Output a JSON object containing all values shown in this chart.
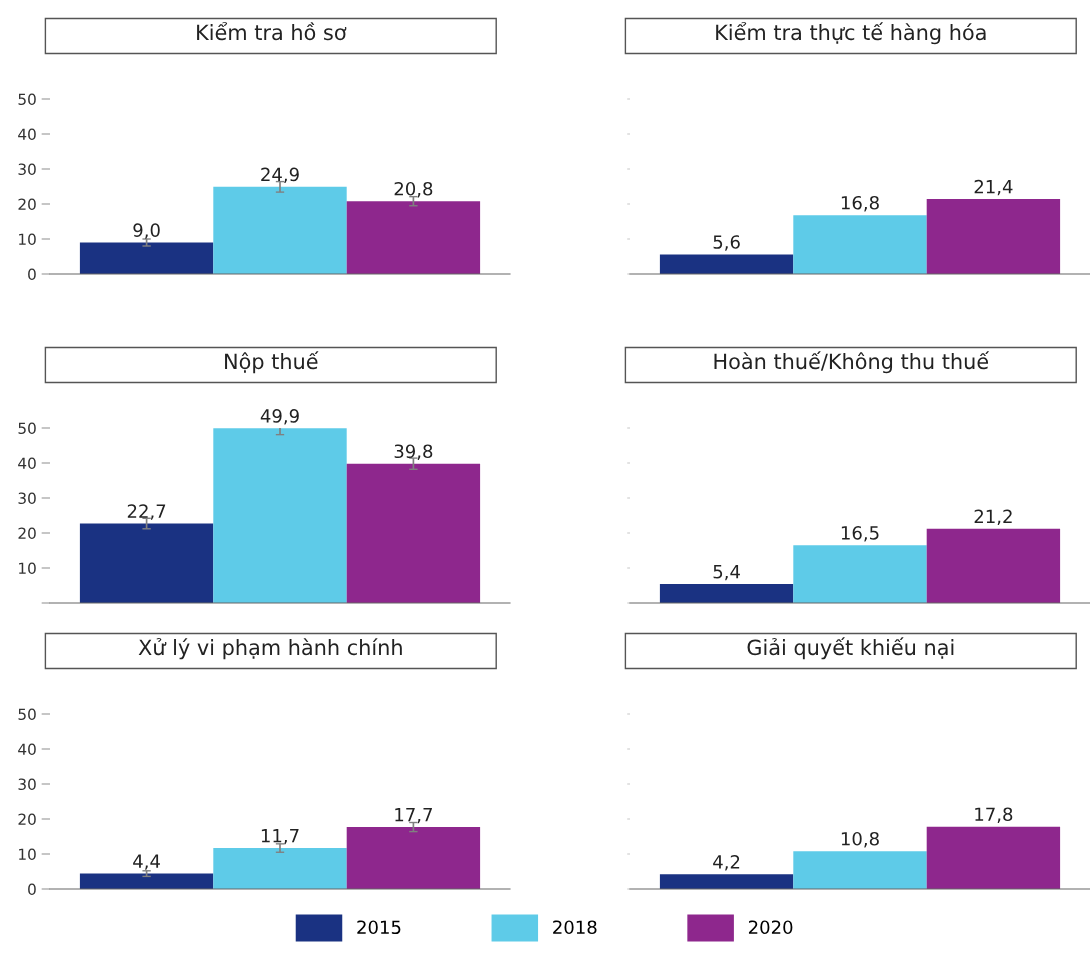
{
  "chart_data": [
    {
      "type": "bar",
      "title": "Kiểm tra hồ sơ",
      "categories": [
        null
      ],
      "ylim": [
        0,
        50
      ],
      "yticks": [
        0,
        10,
        20,
        30,
        40,
        50
      ],
      "grid": false,
      "legend": "bottom",
      "series": [
        {
          "name": "2015",
          "color": "#1a3282",
          "values": [
            9.0
          ],
          "value_labels": [
            "9,0"
          ],
          "errors": [
            1.0
          ]
        },
        {
          "name": "2018",
          "color": "#5ecbe8",
          "values": [
            24.9
          ],
          "value_labels": [
            "24,9"
          ],
          "errors": [
            1.5
          ]
        },
        {
          "name": "2020",
          "color": "#8e278d",
          "values": [
            20.8
          ],
          "value_labels": [
            "20,8"
          ],
          "errors": [
            1.3
          ]
        }
      ]
    },
    {
      "type": "bar",
      "title": "Kiểm tra thực tế hàng hóa",
      "categories": [
        null
      ],
      "tick_labels": false,
      "grid": false,
      "series": [
        {
          "color": "#1a3282",
          "values": [
            5.6
          ],
          "value_labels": [
            "5,6"
          ]
        },
        {
          "color": "#5ecbe8",
          "values": [
            16.8
          ],
          "value_labels": [
            "16,8"
          ]
        },
        {
          "color": "#8e278d",
          "values": [
            21.4
          ],
          "value_labels": [
            "21,4"
          ]
        }
      ]
    },
    {
      "type": "bar",
      "title": "Nộp thuế",
      "categories": [
        null
      ],
      "ylim": [
        0,
        50
      ],
      "yticks": [
        {
          "value": 0,
          "label": null
        },
        10,
        20,
        30,
        40,
        50
      ],
      "grid": false,
      "series": [
        {
          "color": "#1a3282",
          "values": [
            22.7
          ],
          "value_labels": [
            "22,7"
          ],
          "errors": [
            1.5
          ]
        },
        {
          "color": "#5ecbe8",
          "values": [
            49.9
          ],
          "value_labels": [
            "49,9"
          ],
          "errors": [
            1.8
          ]
        },
        {
          "color": "#8e278d",
          "values": [
            39.8
          ],
          "value_labels": [
            "39,8"
          ],
          "errors": [
            1.6
          ]
        }
      ]
    },
    {
      "type": "bar",
      "title": "Hoàn thuế/Không thu thuế",
      "categories": [
        null
      ],
      "tick_labels": false,
      "grid": false,
      "series": [
        {
          "color": "#1a3282",
          "values": [
            5.4
          ],
          "value_labels": [
            "5,4"
          ]
        },
        {
          "color": "#5ecbe8",
          "values": [
            16.5
          ],
          "value_labels": [
            "16,5"
          ]
        },
        {
          "color": "#8e278d",
          "values": [
            21.2
          ],
          "value_labels": [
            "21,2"
          ]
        }
      ]
    },
    {
      "type": "bar",
      "title": "Xử lý vi phạm hành chính",
      "categories": [
        null
      ],
      "ylim": [
        0,
        50
      ],
      "yticks": [
        0,
        10,
        20,
        30,
        40,
        50
      ],
      "grid": false,
      "series": [
        {
          "color": "#1a3282",
          "values": [
            4.4
          ],
          "value_labels": [
            "4,4"
          ],
          "errors": [
            0.8
          ]
        },
        {
          "color": "#5ecbe8",
          "values": [
            11.7
          ],
          "value_labels": [
            "11,7"
          ],
          "errors": [
            1.2
          ]
        },
        {
          "color": "#8e278d",
          "values": [
            17.7
          ],
          "value_labels": [
            "17,7"
          ],
          "errors": [
            1.3
          ]
        }
      ]
    },
    {
      "type": "bar",
      "title": "Giải quyết khiếu nại",
      "categories": [
        null
      ],
      "tick_labels": false,
      "grid": false,
      "series": [
        {
          "color": "#1a3282",
          "values": [
            4.2
          ],
          "value_labels": [
            "4,2"
          ]
        },
        {
          "color": "#5ecbe8",
          "values": [
            10.8
          ],
          "value_labels": [
            "10,8"
          ]
        },
        {
          "color": "#8e278d",
          "values": [
            17.8
          ],
          "value_labels": [
            "17,8"
          ]
        }
      ]
    }
  ]
}
